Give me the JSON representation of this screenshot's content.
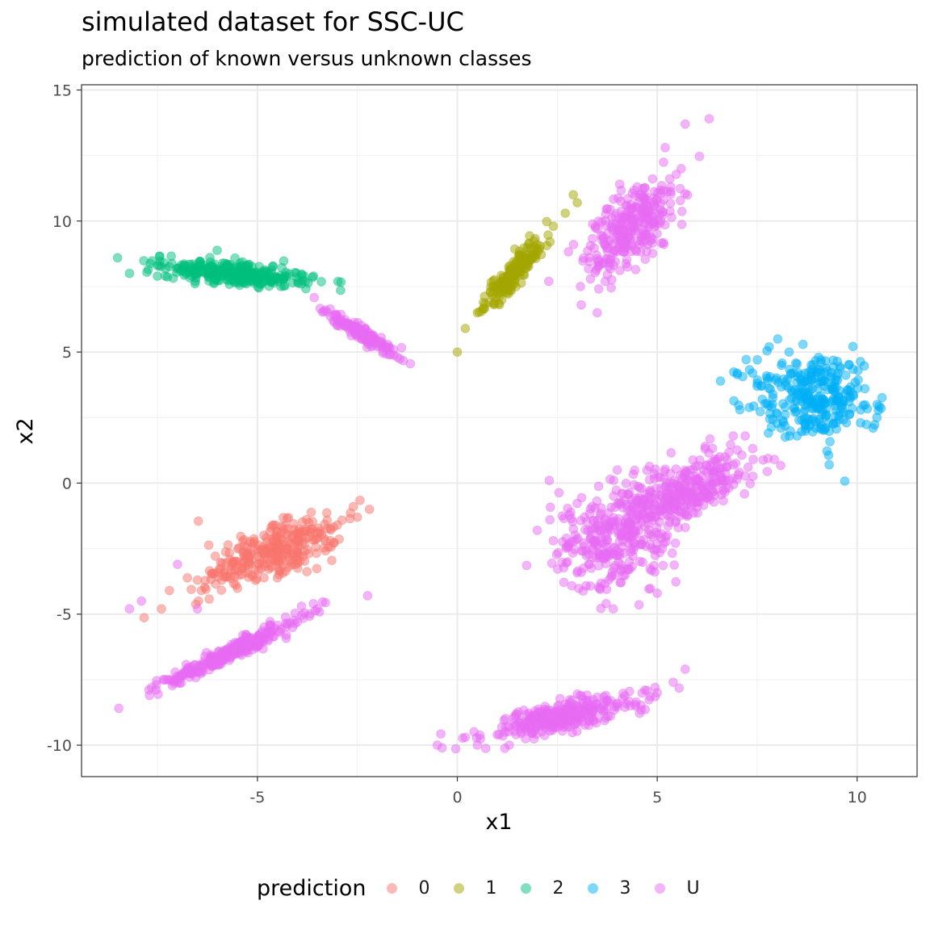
{
  "chart_data": {
    "type": "scatter",
    "title": "simulated dataset for SSC-UC",
    "subtitle": "prediction of known versus unknown classes",
    "xlabel": "x1",
    "ylabel": "x2",
    "xlim": [
      -9.4,
      11.5
    ],
    "ylim": [
      -11.2,
      15.2
    ],
    "x_ticks": [
      -5,
      0,
      5,
      10
    ],
    "y_ticks": [
      -10,
      -5,
      0,
      5,
      10,
      15
    ],
    "x_tick_labels": [
      "-5",
      "0",
      "5",
      "10"
    ],
    "y_tick_labels": [
      "-10",
      "-5",
      "0",
      "5",
      "10",
      "15"
    ],
    "grid": true,
    "legend_title": "prediction",
    "legend_position": "bottom",
    "point_alpha": 0.5,
    "series": [
      {
        "name": "0",
        "color": "#F8766D",
        "clusters": [
          {
            "n": 300,
            "points": [
              [
                -7.2,
                -4.1
              ],
              [
                -6.5,
                -3.7
              ],
              [
                -6.0,
                -3.4
              ],
              [
                -5.5,
                -3.0
              ],
              [
                -5.0,
                -2.8
              ],
              [
                -4.5,
                -2.5
              ],
              [
                -4.0,
                -2.2
              ],
              [
                -3.5,
                -1.9
              ],
              [
                -3.0,
                -1.6
              ],
              [
                -2.5,
                -1.3
              ],
              [
                -2.2,
                -1.0
              ],
              [
                -7.4,
                -4.8
              ],
              [
                -2.6,
                -0.9
              ],
              [
                -6.4,
                -4.1
              ]
            ],
            "center": [
              -4.6,
              -2.6
            ],
            "axis": [
              [
                -7.4,
                -4.6
              ],
              [
                -2.1,
                -0.9
              ]
            ],
            "spread": [
              0.9,
              0.35
            ]
          }
        ]
      },
      {
        "name": "1",
        "color": "#A3A500",
        "clusters": [
          {
            "n": 180,
            "points": [
              [
                0.0,
                5.0
              ],
              [
                0.2,
                5.9
              ],
              [
                0.5,
                6.5
              ],
              [
                0.9,
                7.2
              ],
              [
                1.3,
                7.9
              ],
              [
                1.6,
                8.5
              ],
              [
                2.0,
                9.1
              ],
              [
                2.4,
                9.8
              ],
              [
                2.7,
                10.3
              ],
              [
                2.9,
                11.0
              ],
              [
                3.0,
                10.7
              ]
            ],
            "center": [
              1.4,
              8.0
            ],
            "axis": [
              [
                0.1,
                5.3
              ],
              [
                2.8,
                10.6
              ]
            ],
            "spread": [
              0.55,
              0.12
            ]
          }
        ]
      },
      {
        "name": "2",
        "color": "#00BF7D",
        "clusters": [
          {
            "n": 300,
            "points": [
              [
                -8.5,
                8.6
              ],
              [
                -8.2,
                8.0
              ],
              [
                -7.5,
                8.3
              ],
              [
                -6.5,
                8.2
              ],
              [
                -5.5,
                8.0
              ],
              [
                -4.5,
                7.8
              ],
              [
                -3.8,
                7.7
              ],
              [
                -3.6,
                7.9
              ],
              [
                -3.9,
                7.6
              ]
            ],
            "center": [
              -5.6,
              8.0
            ],
            "axis": [
              [
                -8.3,
                8.3
              ],
              [
                -3.8,
                7.7
              ]
            ],
            "spread": [
              0.9,
              0.14
            ]
          }
        ]
      },
      {
        "name": "3",
        "color": "#00B0F6",
        "clusters": [
          {
            "n": 300,
            "points": [
              [
                7.0,
                4.2
              ],
              [
                7.8,
                5.2
              ],
              [
                8.3,
                5.0
              ],
              [
                9.1,
                4.7
              ],
              [
                9.8,
                4.5
              ],
              [
                10.5,
                3.0
              ],
              [
                10.4,
                2.1
              ],
              [
                9.3,
                0.7
              ],
              [
                8.5,
                1.8
              ],
              [
                7.5,
                3.7
              ]
            ],
            "center": [
              8.9,
              3.3
            ],
            "axis": [
              [
                7.6,
                3.7
              ],
              [
                10.2,
                2.8
              ]
            ],
            "spread": [
              0.75,
              0.55
            ]
          }
        ]
      },
      {
        "name": "U",
        "color": "#E76BF3",
        "clusters": [
          {
            "n": 300,
            "points": [
              [
                3.1,
                6.8
              ],
              [
                3.5,
                6.5
              ],
              [
                3.9,
                9.9
              ],
              [
                4.5,
                11.3
              ],
              [
                5.2,
                12.8
              ],
              [
                5.7,
                13.7
              ],
              [
                6.3,
                13.9
              ],
              [
                5.6,
                12.0
              ],
              [
                3.7,
                7.7
              ]
            ],
            "center": [
              4.4,
              9.8
            ],
            "axis": [
              [
                3.3,
                7.8
              ],
              [
                5.6,
                12.0
              ]
            ],
            "spread": [
              0.75,
              0.35
            ]
          },
          {
            "n": 160,
            "points": [
              [
                -3.3,
                6.6
              ],
              [
                -2.8,
                6.0
              ],
              [
                -2.2,
                5.4
              ],
              [
                -1.7,
                4.9
              ],
              [
                -1.5,
                4.8
              ]
            ],
            "center": [
              -2.4,
              5.7
            ],
            "axis": [
              [
                -3.3,
                6.5
              ],
              [
                -1.5,
                4.8
              ]
            ],
            "spread": [
              0.5,
              0.08
            ]
          },
          {
            "n": 300,
            "points": [
              [
                2.3,
                0.1
              ],
              [
                2.0,
                -1.8
              ],
              [
                2.4,
                -2.2
              ],
              [
                4.0,
                0.5
              ],
              [
                3.9,
                -4.8
              ],
              [
                5.0,
                -4.2
              ],
              [
                6.5,
                0.8
              ],
              [
                7.2,
                1.8
              ],
              [
                7.4,
                0.9
              ],
              [
                6.9,
                1.8
              ]
            ],
            "center": [
              3.9,
              -2.2
            ],
            "axis": [
              [
                2.7,
                -2.8
              ],
              [
                4.9,
                -1.6
              ]
            ],
            "spread": [
              0.75,
              0.6
            ]
          },
          {
            "n": 320,
            "points": [
              [
                5.4,
                0.0
              ],
              [
                6.2,
                1.4
              ],
              [
                6.7,
                1.0
              ],
              [
                4.6,
                -1.5
              ],
              [
                5.0,
                -2.3
              ]
            ],
            "center": [
              5.7,
              -0.3
            ],
            "axis": [
              [
                4.4,
                -1.0
              ],
              [
                7.0,
                0.8
              ]
            ],
            "spread": [
              0.85,
              0.35
            ]
          },
          {
            "n": 300,
            "points": [
              [
                -7.7,
                -8.1
              ],
              [
                -7.0,
                -7.6
              ],
              [
                -6.0,
                -6.8
              ],
              [
                -5.0,
                -6.0
              ],
              [
                -4.0,
                -5.3
              ],
              [
                -3.6,
                -4.6
              ],
              [
                -3.9,
                -4.7
              ],
              [
                -8.2,
                -4.8
              ],
              [
                -7.9,
                -4.5
              ],
              [
                -7.0,
                -3.1
              ],
              [
                -6.5,
                -4.8
              ]
            ],
            "center": [
              -5.6,
              -6.4
            ],
            "axis": [
              [
                -7.6,
                -8.0
              ],
              [
                -3.8,
                -5.2
              ]
            ],
            "spread": [
              1.0,
              0.1
            ]
          },
          {
            "n": 320,
            "points": [
              [
                -0.5,
                -10.0
              ],
              [
                0.2,
                -9.7
              ],
              [
                0.5,
                -10.0
              ],
              [
                1.0,
                -9.6
              ],
              [
                2.0,
                -9.2
              ],
              [
                3.0,
                -8.8
              ],
              [
                4.0,
                -8.4
              ],
              [
                5.0,
                -8.0
              ],
              [
                5.4,
                -7.6
              ],
              [
                5.7,
                -7.1
              ],
              [
                1.3,
                -10.0
              ]
            ],
            "center": [
              2.6,
              -8.9
            ],
            "axis": [
              [
                0.2,
                -9.8
              ],
              [
                4.9,
                -8.0
              ]
            ],
            "spread": [
              1.0,
              0.18
            ]
          }
        ]
      }
    ]
  }
}
